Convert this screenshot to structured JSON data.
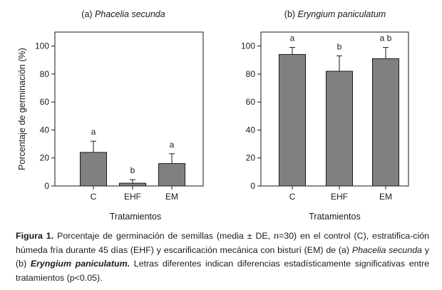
{
  "chart_data": [
    {
      "type": "bar",
      "panel_label": "(a)",
      "title": "Phacelia secunda",
      "categories": [
        "C",
        "EHF",
        "EM"
      ],
      "values": [
        24,
        2,
        16
      ],
      "errors": [
        8,
        2.5,
        7
      ],
      "significance_letters": [
        "a",
        "b",
        "a"
      ],
      "xlabel": "Tratamientos",
      "ylabel": "Porcentaje de germinación (%)",
      "ylim": [
        0,
        110
      ],
      "yticks": [
        0,
        20,
        40,
        60,
        80,
        100
      ],
      "bar_color": "#808080",
      "grid": false
    },
    {
      "type": "bar",
      "panel_label": "(b)",
      "title": "Eryngium paniculatum",
      "categories": [
        "C",
        "EHF",
        "EM"
      ],
      "values": [
        94,
        82,
        91
      ],
      "errors": [
        5,
        11,
        8
      ],
      "significance_letters": [
        "a",
        "b",
        "a b"
      ],
      "xlabel": "Tratamientos",
      "ylabel": "",
      "ylim": [
        0,
        110
      ],
      "yticks": [
        0,
        20,
        40,
        60,
        80,
        100
      ],
      "bar_color": "#808080",
      "grid": false
    }
  ],
  "caption": {
    "label": "Figura 1.",
    "part1": " Porcentaje de germinación de semillas (media ± DE, n=30) en el control (C), estratifica-ción húmeda fría durante 45 días (EHF) y escarificación mecánica con bisturí (EM) de (a) ",
    "species_a": "Phacelia secunda",
    "part2": " y (b) ",
    "species_b": "Eryngium paniculatum.",
    "part3": " Letras diferentes indican diferencias estadísticamente significativas entre tratamientos (p<0.05)."
  }
}
